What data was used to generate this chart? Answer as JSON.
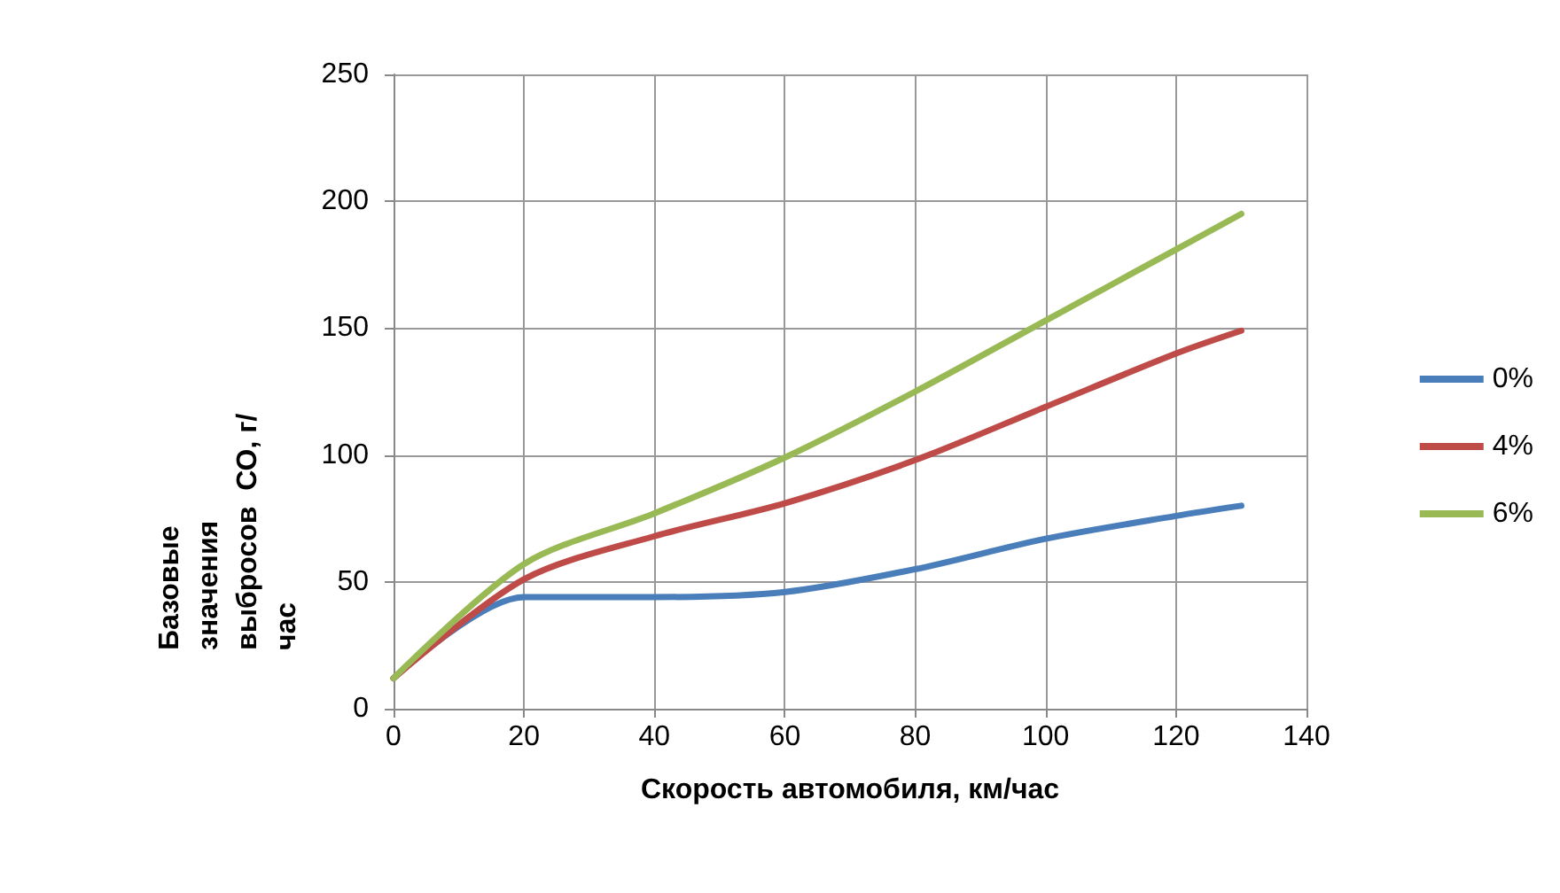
{
  "chart_data": {
    "type": "line",
    "xlabel": "Скорость автомобиля, км/час",
    "ylabel": "Базовые значения выбросов  СО, г/час",
    "x": [
      0,
      20,
      40,
      60,
      80,
      100,
      120,
      130
    ],
    "series": [
      {
        "name": "0%",
        "color": "#4a7ebb",
        "values": [
          12,
          44,
          44,
          46,
          55,
          67,
          76,
          80
        ]
      },
      {
        "name": "4%",
        "color": "#be4b48",
        "values": [
          12,
          51,
          68,
          81,
          98,
          119,
          140,
          149
        ]
      },
      {
        "name": "6%",
        "color": "#98b954",
        "values": [
          12,
          57,
          77,
          99,
          125,
          153,
          181,
          195
        ]
      }
    ],
    "xlim": [
      0,
      140
    ],
    "xticks": [
      0,
      20,
      40,
      60,
      80,
      100,
      120,
      140
    ],
    "ylim": [
      0,
      250
    ],
    "yticks": [
      0,
      50,
      100,
      150,
      200,
      250
    ],
    "grid": true,
    "legend": "right",
    "marker": "none",
    "line_style": "solid"
  }
}
